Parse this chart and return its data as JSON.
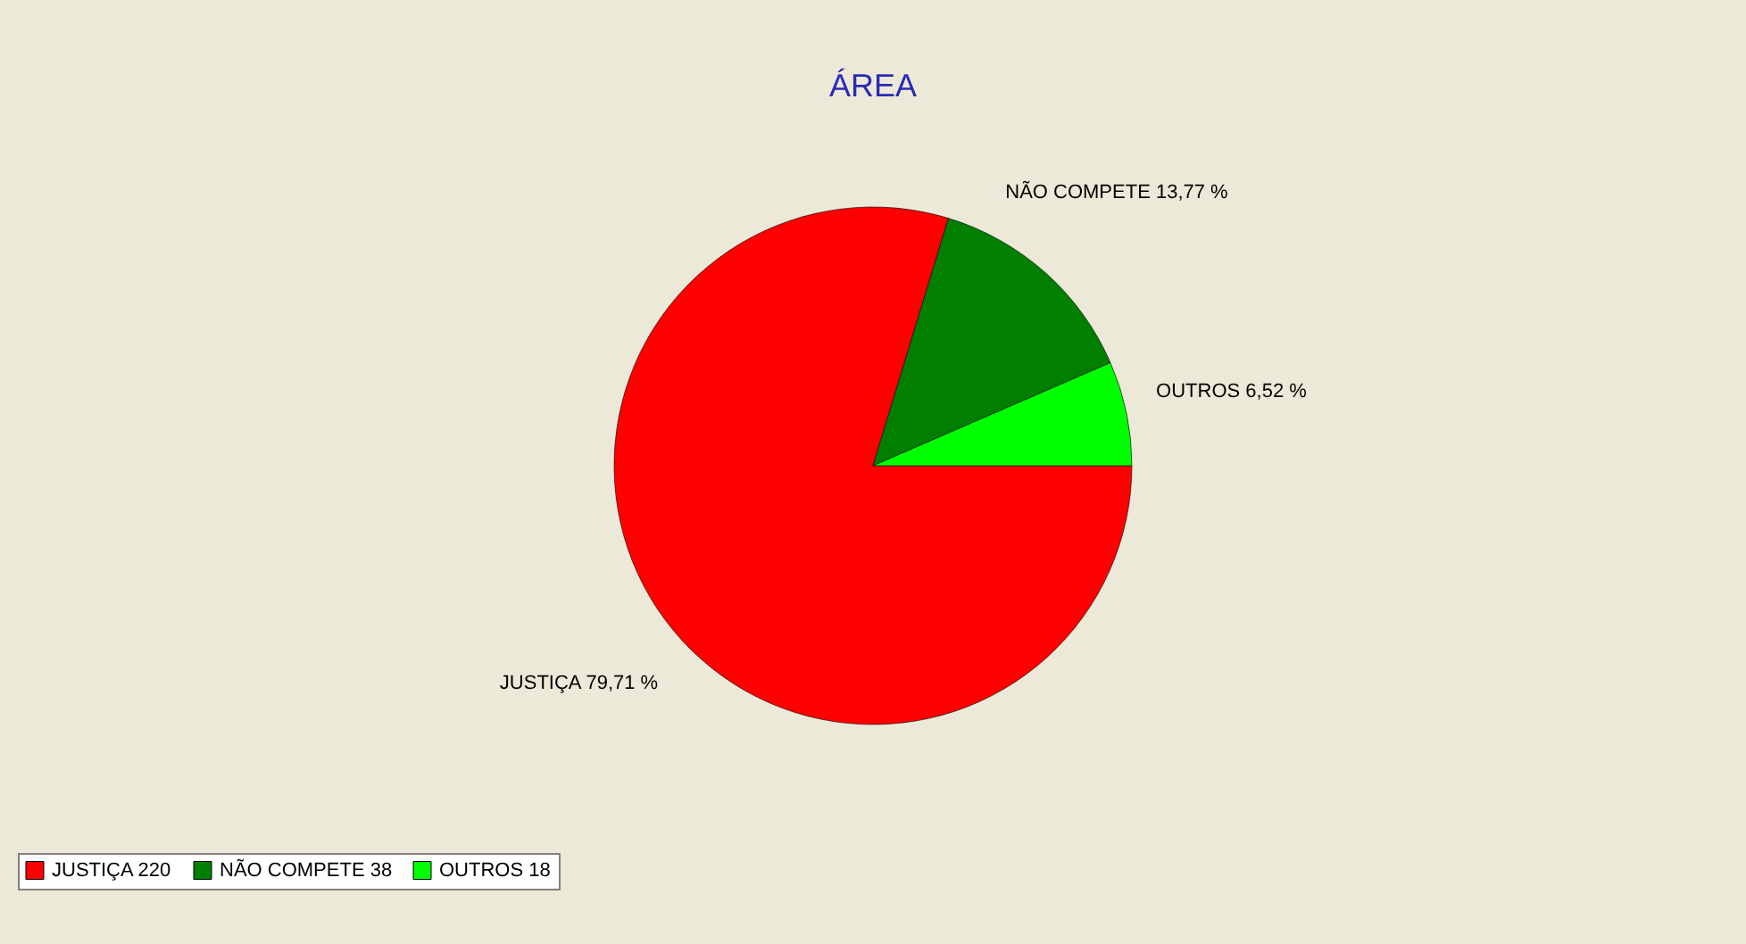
{
  "chart_data": {
    "type": "pie",
    "title": "ÁREA",
    "categories": [
      "JUSTIÇA 220",
      "NÃO COMPETE 38",
      "OUTROS 18"
    ],
    "values": [
      79.71,
      13.77,
      6.52
    ],
    "colors": [
      "#ff0000",
      "#007f00",
      "#00ff00"
    ],
    "value_labels": [
      "JUSTIÇA 79,71 %",
      "NÃO COMPETE 13,77 %",
      "OUTROS 6,52 %"
    ],
    "legend": "bottom"
  }
}
